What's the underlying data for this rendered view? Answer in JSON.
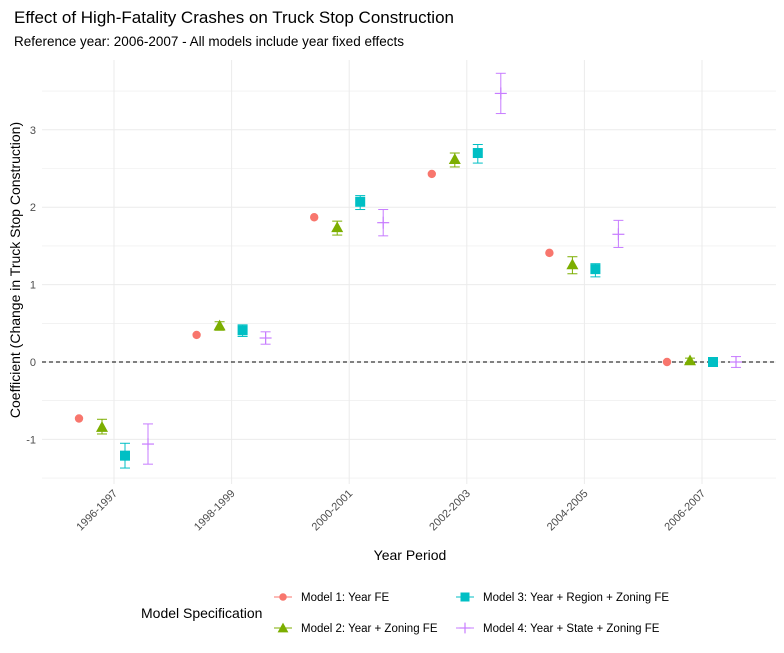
{
  "chart_data": {
    "type": "scatter",
    "title": "Effect of High-Fatality Crashes on Truck Stop Construction",
    "subtitle": "Reference year: 2006-2007 - All models include year fixed effects",
    "xlabel": "Year Period",
    "ylabel": "Coefficient (Change in Truck Stop Construction)",
    "categories": [
      "1996-1997",
      "1998-1999",
      "2000-2001",
      "2002-2003",
      "2004-2005",
      "2006-2007"
    ],
    "ylim": [
      -1.5,
      3.7
    ],
    "yticks": [
      "-1",
      "0",
      "1",
      "2",
      "3"
    ],
    "reference_line": 0,
    "grid": true,
    "legend_title": "Model Specification",
    "legend_position": "bottom",
    "series": [
      {
        "name": "Model 1: Year FE",
        "color": "#F8766D",
        "shape": "circle",
        "values": [
          -0.73,
          0.35,
          1.87,
          2.43,
          1.41,
          0.0
        ],
        "ci_low": [
          null,
          null,
          null,
          null,
          null,
          null
        ],
        "ci_high": [
          null,
          null,
          null,
          null,
          null,
          null
        ]
      },
      {
        "name": "Model 2: Year + Zoning FE",
        "color": "#7CAE00",
        "shape": "triangle",
        "values": [
          -0.84,
          0.47,
          1.74,
          2.62,
          1.26,
          0.02
        ],
        "ci_low": [
          -0.93,
          0.41,
          1.64,
          2.52,
          1.14,
          -0.01
        ],
        "ci_high": [
          -0.74,
          0.52,
          1.82,
          2.7,
          1.36,
          0.05
        ]
      },
      {
        "name": "Model 3: Year + Region + Zoning FE",
        "color": "#00BFC4",
        "shape": "square",
        "values": [
          -1.21,
          0.41,
          2.07,
          2.7,
          1.2,
          0.0
        ],
        "ci_low": [
          -1.37,
          0.33,
          1.97,
          2.57,
          1.1,
          -0.03
        ],
        "ci_high": [
          -1.05,
          0.48,
          2.15,
          2.81,
          1.27,
          0.03
        ]
      },
      {
        "name": "Model 4: Year + State + Zoning FE",
        "color": "#C77CFF",
        "shape": "plus",
        "values": [
          -1.06,
          0.31,
          1.8,
          3.47,
          1.65,
          0.0
        ],
        "ci_low": [
          -1.32,
          0.23,
          1.63,
          3.21,
          1.48,
          -0.07
        ],
        "ci_high": [
          -0.8,
          0.39,
          1.97,
          3.73,
          1.83,
          0.07
        ]
      }
    ]
  }
}
